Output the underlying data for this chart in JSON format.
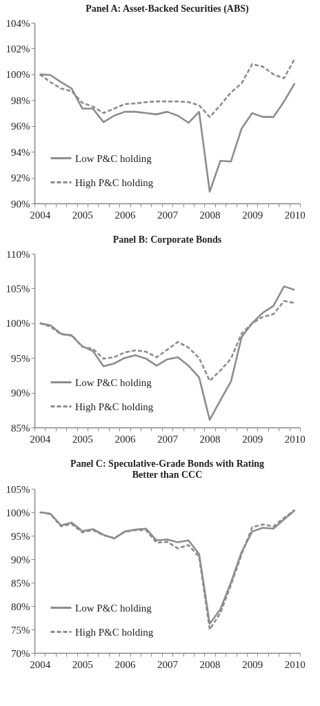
{
  "chart_data": [
    {
      "type": "line",
      "title": "Panel A: Asset-Backed Securities (ABS)",
      "categories": [
        "2004",
        null,
        null,
        null,
        "2005",
        null,
        null,
        null,
        "2006",
        null,
        null,
        null,
        "2007",
        null,
        null,
        null,
        "2008",
        null,
        null,
        null,
        "2009",
        null,
        null,
        null,
        "2010"
      ],
      "ylim": [
        90,
        104
      ],
      "yticks": [
        {
          "value": 90,
          "label": "90%"
        },
        {
          "value": 92,
          "label": "92%"
        },
        {
          "value": 94,
          "label": "94%"
        },
        {
          "value": 96,
          "label": "96%"
        },
        {
          "value": 98,
          "label": "98%"
        },
        {
          "value": 100,
          "label": "100%"
        },
        {
          "value": 102,
          "label": "102%"
        },
        {
          "value": 104,
          "label": "104%"
        }
      ],
      "grid": false,
      "legend": "bottom left",
      "marker": "none",
      "series": [
        {
          "name": "Low P&C holding",
          "color": "#8c8c8c",
          "line_style": "solid",
          "values": [
            100.0,
            99.95,
            99.4,
            98.9,
            97.35,
            97.35,
            96.3,
            96.8,
            97.1,
            97.1,
            97.0,
            96.9,
            97.1,
            96.8,
            96.25,
            97.1,
            90.9,
            93.3,
            93.25,
            95.8,
            97.0,
            96.7,
            96.7,
            97.9,
            99.3
          ]
        },
        {
          "name": "High P&C holding",
          "color": "#8c8c8c",
          "line_style": "dashed",
          "values": [
            100.0,
            99.4,
            98.9,
            98.7,
            97.8,
            97.5,
            97.0,
            97.35,
            97.7,
            97.75,
            97.85,
            97.9,
            97.9,
            97.9,
            97.85,
            97.6,
            96.7,
            97.6,
            98.6,
            99.3,
            100.8,
            100.6,
            100.0,
            99.7,
            101.2
          ]
        }
      ]
    },
    {
      "type": "line",
      "title": "Panel B: Corporate Bonds",
      "categories": [
        "2004",
        null,
        null,
        null,
        "2005",
        null,
        null,
        null,
        "2006",
        null,
        null,
        null,
        "2007",
        null,
        null,
        null,
        "2008",
        null,
        null,
        null,
        "2009",
        null,
        null,
        null,
        "2010"
      ],
      "ylim": [
        85,
        110
      ],
      "yticks": [
        {
          "value": 85,
          "label": "85%"
        },
        {
          "value": 90,
          "label": "90%"
        },
        {
          "value": 95,
          "label": "95%"
        },
        {
          "value": 100,
          "label": "100%"
        },
        {
          "value": 105,
          "label": "105%"
        },
        {
          "value": 110,
          "label": "110%"
        }
      ],
      "grid": false,
      "legend": "bottom left",
      "marker": "none",
      "series": [
        {
          "name": "Low P&C holding",
          "color": "#8c8c8c",
          "line_style": "solid",
          "values": [
            100.0,
            99.7,
            98.5,
            98.2,
            96.7,
            96.0,
            93.8,
            94.2,
            95.0,
            95.4,
            94.9,
            93.9,
            94.8,
            95.1,
            93.9,
            92.2,
            86.1,
            88.9,
            91.6,
            98.0,
            100.0,
            101.5,
            102.5,
            105.3,
            104.8
          ]
        },
        {
          "name": "High P&C holding",
          "color": "#8c8c8c",
          "line_style": "dashed",
          "values": [
            100.0,
            99.5,
            98.4,
            98.3,
            96.6,
            96.3,
            94.9,
            95.1,
            95.8,
            96.1,
            95.9,
            95.1,
            96.2,
            97.3,
            96.5,
            95.0,
            91.7,
            93.2,
            94.9,
            98.5,
            100.0,
            100.9,
            101.3,
            103.2,
            102.9
          ]
        }
      ]
    },
    {
      "type": "line",
      "title": "Panel C: Speculative-Grade Bonds with Rating Better than CCC",
      "categories": [
        "2004",
        null,
        null,
        null,
        "2005",
        null,
        null,
        null,
        "2006",
        null,
        null,
        null,
        "2007",
        null,
        null,
        null,
        "2008",
        null,
        null,
        null,
        "2009",
        null,
        null,
        null,
        "2010"
      ],
      "ylim": [
        70,
        105
      ],
      "yticks": [
        {
          "value": 70,
          "label": "70%"
        },
        {
          "value": 75,
          "label": "75%"
        },
        {
          "value": 80,
          "label": "80%"
        },
        {
          "value": 85,
          "label": "85%"
        },
        {
          "value": 90,
          "label": "90%"
        },
        {
          "value": 95,
          "label": "95%"
        },
        {
          "value": 100,
          "label": "100%"
        },
        {
          "value": 105,
          "label": "105%"
        }
      ],
      "grid": false,
      "legend": "bottom left",
      "marker": "none",
      "series": [
        {
          "name": "Low P&C holding",
          "color": "#8c8c8c",
          "line_style": "solid",
          "values": [
            100.0,
            99.7,
            97.2,
            97.8,
            96.0,
            96.4,
            95.2,
            94.4,
            95.9,
            96.3,
            96.5,
            94.0,
            94.2,
            93.6,
            94.0,
            91.1,
            76.2,
            79.3,
            85.0,
            91.5,
            95.9,
            96.7,
            96.5,
            98.5,
            100.4
          ]
        },
        {
          "name": "High P&C holding",
          "color": "#8c8c8c",
          "line_style": "dashed",
          "values": [
            100.0,
            99.6,
            97.0,
            97.5,
            95.7,
            96.2,
            95.1,
            94.5,
            95.8,
            96.2,
            96.2,
            93.5,
            93.7,
            92.3,
            93.0,
            90.5,
            75.0,
            78.5,
            84.5,
            91.0,
            96.8,
            97.4,
            97.0,
            98.8,
            100.5
          ]
        }
      ]
    }
  ]
}
